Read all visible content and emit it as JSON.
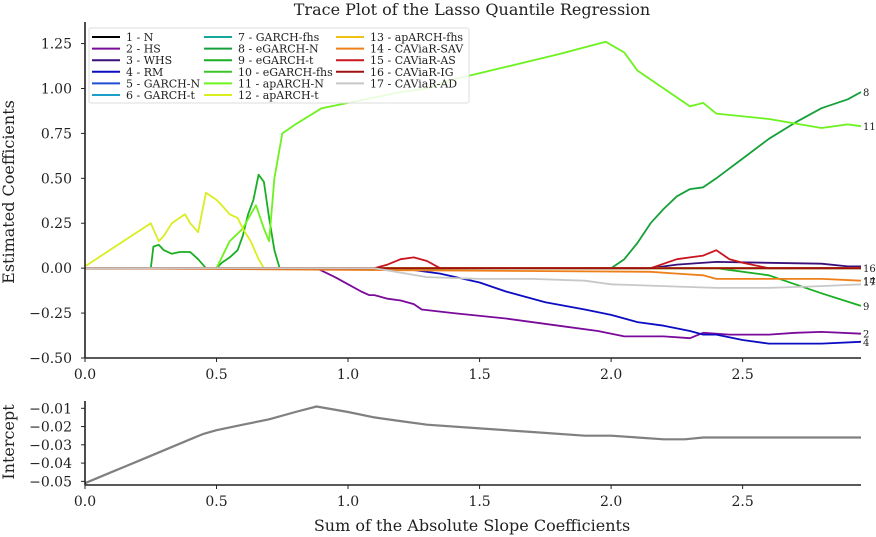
{
  "chart_data": [
    {
      "type": "line",
      "title": "Trace Plot of the Lasso Quantile Regression",
      "xlabel": "",
      "ylabel": "Estimated Coefficients",
      "xlim": [
        0.0,
        2.95
      ],
      "ylim": [
        -0.5,
        1.37
      ],
      "xticks": [
        "0.0",
        "0.5",
        "1.0",
        "1.5",
        "2.0",
        "2.5"
      ],
      "yticks": [
        "−0.50",
        "−0.25",
        "0.00",
        "0.25",
        "0.50",
        "0.75",
        "1.00",
        "1.25"
      ],
      "grid": false,
      "legend_position": "top-left",
      "series": [
        {
          "name": "1 - N",
          "color": "#000000",
          "end_label": "",
          "x": [
            0,
            2.95
          ],
          "y": [
            0,
            0
          ]
        },
        {
          "name": "2 - HS",
          "color": "#7a0a9a",
          "end_label": "2",
          "x": [
            0,
            0.88,
            0.95,
            1.0,
            1.05,
            1.08,
            1.1,
            1.15,
            1.2,
            1.25,
            1.28,
            1.4,
            1.6,
            1.8,
            1.95,
            2.05,
            2.2,
            2.3,
            2.35,
            2.45,
            2.6,
            2.7,
            2.8,
            2.95
          ],
          "y": [
            0,
            0,
            -0.05,
            -0.09,
            -0.13,
            -0.15,
            -0.15,
            -0.17,
            -0.18,
            -0.2,
            -0.23,
            -0.25,
            -0.28,
            -0.32,
            -0.35,
            -0.38,
            -0.38,
            -0.39,
            -0.36,
            -0.37,
            -0.37,
            -0.36,
            -0.355,
            -0.365
          ]
        },
        {
          "name": "3 - WHS",
          "color": "#3b0f7a",
          "end_label": "",
          "x": [
            0,
            2.15,
            2.25,
            2.4,
            2.6,
            2.8,
            2.9,
            2.95
          ],
          "y": [
            0,
            0,
            0.02,
            0.035,
            0.03,
            0.025,
            0.01,
            0.01
          ]
        },
        {
          "name": "4 - RM",
          "color": "#0c0cc2",
          "end_label": "4",
          "x": [
            0,
            1.2,
            1.35,
            1.5,
            1.6,
            1.75,
            1.9,
            2.0,
            2.1,
            2.2,
            2.3,
            2.35,
            2.4,
            2.5,
            2.6,
            2.8,
            2.95
          ],
          "y": [
            0,
            0,
            -0.03,
            -0.08,
            -0.13,
            -0.19,
            -0.23,
            -0.26,
            -0.3,
            -0.32,
            -0.35,
            -0.37,
            -0.37,
            -0.4,
            -0.42,
            -0.42,
            -0.41
          ]
        },
        {
          "name": "5 - GARCH-N",
          "color": "#1f4fd0",
          "end_label": "",
          "x": [
            0,
            2.95
          ],
          "y": [
            0,
            0
          ]
        },
        {
          "name": "6 - GARCH-t",
          "color": "#1c9fc9",
          "end_label": "",
          "x": [
            0,
            2.95
          ],
          "y": [
            0,
            0
          ]
        },
        {
          "name": "7 - GARCH-fhs",
          "color": "#14a89b",
          "end_label": "",
          "x": [
            0,
            2.95
          ],
          "y": [
            0,
            0
          ]
        },
        {
          "name": "8 - eGARCH-N",
          "color": "#16a03a",
          "end_label": "8",
          "x": [
            0,
            2.0,
            2.05,
            2.1,
            2.15,
            2.2,
            2.25,
            2.3,
            2.35,
            2.4,
            2.5,
            2.6,
            2.7,
            2.8,
            2.9,
            2.95
          ],
          "y": [
            0,
            0,
            0.05,
            0.14,
            0.25,
            0.33,
            0.4,
            0.44,
            0.45,
            0.5,
            0.61,
            0.72,
            0.81,
            0.89,
            0.94,
            0.98
          ]
        },
        {
          "name": "9 - eGARCH-t",
          "color": "#1aae22",
          "end_label": "9",
          "x": [
            0,
            0.25,
            0.26,
            0.28,
            0.3,
            0.33,
            0.36,
            0.4,
            0.43,
            0.46,
            0.48,
            0.5,
            0.52,
            0.55,
            0.58,
            0.6,
            0.62,
            0.64,
            0.66,
            0.68,
            0.7,
            0.72,
            0.74,
            2.4,
            2.6,
            2.8,
            2.95
          ],
          "y": [
            0,
            0,
            0.12,
            0.13,
            0.1,
            0.08,
            0.09,
            0.09,
            0.05,
            0.0,
            0.0,
            0.0,
            0.03,
            0.06,
            0.1,
            0.18,
            0.3,
            0.38,
            0.52,
            0.48,
            0.28,
            0.1,
            0.0,
            0.0,
            -0.04,
            -0.14,
            -0.21
          ]
        },
        {
          "name": "10 - eGARCH-fhs",
          "color": "#3fc32a",
          "end_label": "",
          "x": [
            0,
            2.95
          ],
          "y": [
            0,
            0
          ]
        },
        {
          "name": "11 - apARCH-N",
          "color": "#6cf21e",
          "end_label": "11",
          "x": [
            0,
            0.5,
            0.55,
            0.6,
            0.63,
            0.65,
            0.68,
            0.7,
            0.72,
            0.75,
            0.8,
            0.9,
            1.0,
            1.1,
            1.2,
            1.3,
            1.4,
            1.6,
            1.8,
            1.98,
            2.05,
            2.1,
            2.2,
            2.3,
            2.35,
            2.4,
            2.6,
            2.8,
            2.9,
            2.95
          ],
          "y": [
            0,
            0,
            0.15,
            0.22,
            0.3,
            0.35,
            0.22,
            0.15,
            0.5,
            0.75,
            0.8,
            0.89,
            0.92,
            0.95,
            0.98,
            1.0,
            1.05,
            1.12,
            1.19,
            1.26,
            1.2,
            1.1,
            1.0,
            0.9,
            0.92,
            0.86,
            0.83,
            0.78,
            0.8,
            0.79
          ]
        },
        {
          "name": "12 - apARCH-t",
          "color": "#d9ee1f",
          "end_label": "",
          "x": [
            0,
            0.25,
            0.28,
            0.3,
            0.33,
            0.35,
            0.38,
            0.4,
            0.43,
            0.46,
            0.5,
            0.52,
            0.55,
            0.58,
            0.6,
            0.63,
            0.66,
            0.68,
            2.95
          ],
          "y": [
            0.01,
            0.25,
            0.15,
            0.18,
            0.25,
            0.27,
            0.3,
            0.25,
            0.2,
            0.42,
            0.38,
            0.35,
            0.3,
            0.28,
            0.22,
            0.15,
            0.05,
            0.0,
            0.0
          ]
        },
        {
          "name": "13 - apARCH-fhs",
          "color": "#f2c012",
          "end_label": "",
          "x": [
            0,
            2.95
          ],
          "y": [
            0,
            0
          ]
        },
        {
          "name": "14 - CAViaR-SAV",
          "color": "#ef7f1a",
          "end_label": "14",
          "x": [
            0,
            2.15,
            2.25,
            2.35,
            2.4,
            2.6,
            2.8,
            2.95
          ],
          "y": [
            0,
            -0.02,
            -0.03,
            -0.04,
            -0.06,
            -0.06,
            -0.06,
            -0.07
          ]
        },
        {
          "name": "15 - CAViaR-AS",
          "color": "#c8151e",
          "end_label": "",
          "x": [
            0,
            1.1,
            1.15,
            1.2,
            1.25,
            1.3,
            1.35,
            2.15,
            2.25,
            2.3,
            2.35,
            2.4,
            2.45,
            2.5,
            2.6,
            2.95
          ],
          "y": [
            0,
            0,
            0.02,
            0.05,
            0.06,
            0.04,
            0.0,
            0.0,
            0.05,
            0.06,
            0.07,
            0.1,
            0.05,
            0.03,
            0.0,
            0.0
          ]
        },
        {
          "name": "16 - CAViaR-IG",
          "color": "#a11010",
          "end_label": "16",
          "x": [
            0,
            2.95
          ],
          "y": [
            0,
            0
          ]
        },
        {
          "name": "17 - CAViaR-AD",
          "color": "#c8c8c8",
          "end_label": "17",
          "x": [
            0,
            1.1,
            1.3,
            1.5,
            1.7,
            1.9,
            2.0,
            2.2,
            2.4,
            2.6,
            2.8,
            2.95
          ],
          "y": [
            0,
            0,
            -0.05,
            -0.06,
            -0.06,
            -0.07,
            -0.09,
            -0.1,
            -0.11,
            -0.11,
            -0.1,
            -0.09
          ]
        }
      ]
    },
    {
      "type": "line",
      "title": "",
      "xlabel": "Sum of the Absolute Slope Coefficients",
      "ylabel": "Intercept",
      "xlim": [
        0.0,
        2.95
      ],
      "ylim": [
        -0.052,
        -0.006
      ],
      "xticks": [
        "0.0",
        "0.5",
        "1.0",
        "1.5",
        "2.0",
        "2.5"
      ],
      "yticks": [
        "−0.05",
        "−0.04",
        "−0.03",
        "−0.02",
        "−0.01"
      ],
      "grid": false,
      "series": [
        {
          "name": "",
          "color": "#808080",
          "x": [
            0.0,
            0.1,
            0.2,
            0.3,
            0.4,
            0.45,
            0.5,
            0.6,
            0.7,
            0.8,
            0.88,
            1.0,
            1.1,
            1.2,
            1.3,
            1.5,
            1.7,
            1.9,
            2.0,
            2.1,
            2.2,
            2.28,
            2.35,
            2.4,
            2.5,
            2.6,
            2.8,
            2.95
          ],
          "y": [
            -0.051,
            -0.045,
            -0.039,
            -0.033,
            -0.027,
            -0.024,
            -0.022,
            -0.019,
            -0.016,
            -0.012,
            -0.009,
            -0.012,
            -0.015,
            -0.017,
            -0.019,
            -0.021,
            -0.023,
            -0.025,
            -0.025,
            -0.026,
            -0.027,
            -0.027,
            -0.026,
            -0.026,
            -0.026,
            -0.026,
            -0.026,
            -0.026
          ]
        }
      ]
    }
  ]
}
